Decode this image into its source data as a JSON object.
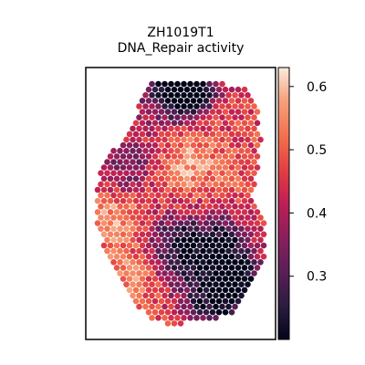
{
  "chart_data": {
    "type": "heatmap",
    "title": "ZH1019T1",
    "subtitle": "DNA_Repair activity",
    "xlabel": "",
    "ylabel": "",
    "grid": false,
    "colormap": "rocket",
    "colorbar": {
      "range": [
        0.2,
        0.63
      ],
      "ticks": [
        0.3,
        0.4,
        0.5,
        0.6
      ],
      "tick_labels": [
        "0.3",
        "0.4",
        "0.5",
        "0.6"
      ]
    },
    "spatial_pattern_note": "",
    "regions": []
  }
}
